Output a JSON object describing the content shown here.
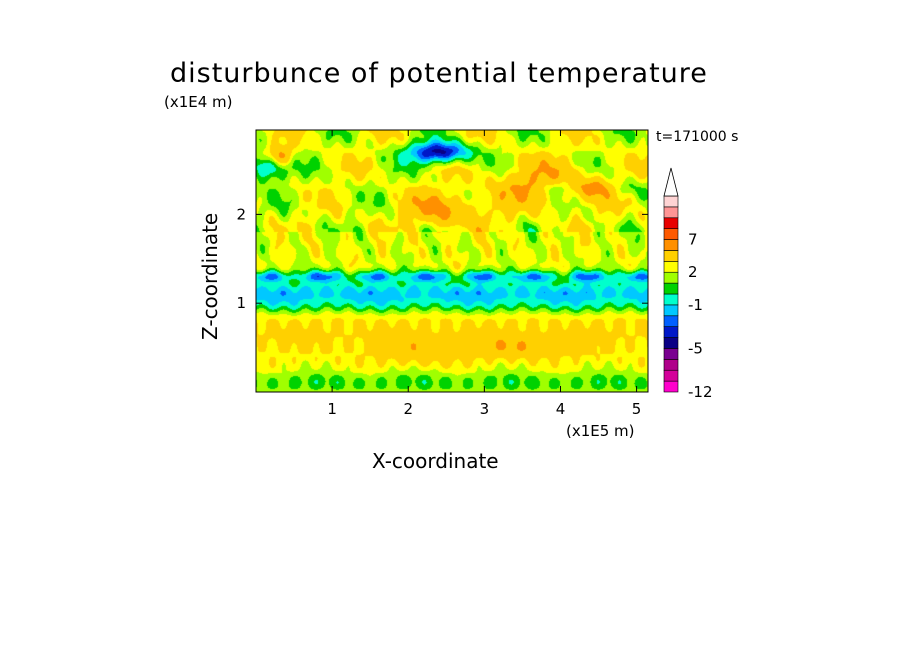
{
  "chart_data": {
    "type": "heatmap",
    "title": "disturbunce of potential temperature",
    "xlabel": "X-coordinate",
    "ylabel": "Z-coordinate",
    "x_scale_label": "(x1E5 m)",
    "y_scale_label": "(x1E4 m)",
    "time_label": "t=171000 s",
    "xlim": [
      0,
      5.15
    ],
    "ylim": [
      0,
      2.95
    ],
    "x_ticks": [
      "1",
      "2",
      "3",
      "4",
      "5"
    ],
    "y_ticks": [
      "1",
      "2"
    ],
    "colorbar": {
      "levels": [
        -12,
        -10,
        -8,
        -6,
        -5,
        -4,
        -3,
        -2,
        -1,
        0,
        1,
        2,
        3,
        5,
        7,
        8,
        9,
        11
      ],
      "tick_labels": [
        "-12",
        "-5",
        "-1",
        "2",
        "7"
      ],
      "colors": [
        "#ff00cc",
        "#d4009a",
        "#b0008a",
        "#7a0090",
        "#0a0085",
        "#0018c8",
        "#0060ff",
        "#00c8ff",
        "#00ffcc",
        "#00d200",
        "#a0ff00",
        "#ffff00",
        "#ffd000",
        "#ff9000",
        "#ff5a00",
        "#e80000",
        "#ff9595",
        "#ffd4d4"
      ],
      "extend": "max"
    },
    "grid": false
  }
}
